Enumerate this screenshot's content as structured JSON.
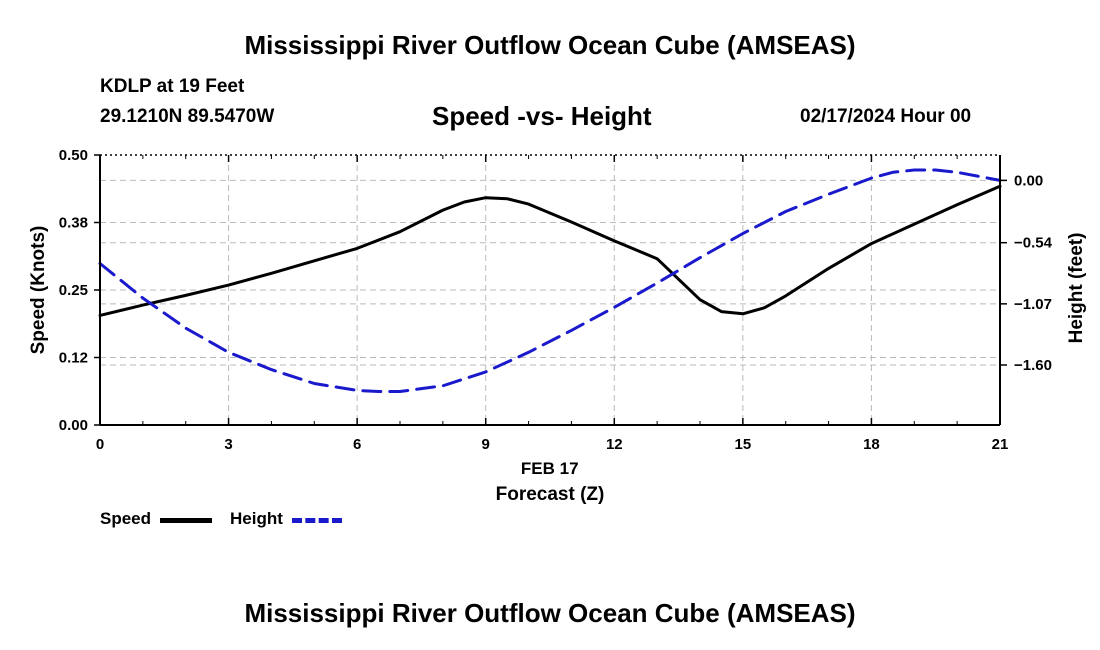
{
  "header": {
    "title": "Mississippi River Outflow Ocean Cube (AMSEAS)",
    "station": "KDLP at 19 Feet",
    "coords": "29.1210N  89.5470W",
    "subtitle": "Speed -vs- Height",
    "datetime": "02/17/2024 Hour 00"
  },
  "footer": {
    "title": "Mississippi River Outflow Ocean Cube (AMSEAS)"
  },
  "legend": {
    "items": [
      {
        "label": "Speed",
        "color": "#000000",
        "style": "solid"
      },
      {
        "label": "Height",
        "color": "#1a1acc",
        "style": "dashed"
      }
    ]
  },
  "chart_data": {
    "type": "line",
    "xlabel": "Forecast (Z)",
    "xdate_label": "FEB 17",
    "ylabel_left": "Speed (Knots)",
    "ylabel_right": "Height (feet)",
    "xlim": [
      0,
      21
    ],
    "ylim_left": [
      0,
      0.5
    ],
    "ylim_right": [
      -2.12,
      0.22
    ],
    "x_ticks": [
      0,
      3,
      6,
      9,
      12,
      15,
      18,
      21
    ],
    "x_tick_labels": [
      "0",
      "3",
      "6",
      "9",
      "12",
      "15",
      "18",
      "21"
    ],
    "y_left_ticks": [
      0,
      0.125,
      0.25,
      0.375,
      0.5
    ],
    "y_left_tick_labels": [
      "0.00",
      "0.12",
      "0.25",
      "0.38",
      "0.50"
    ],
    "y_right_ticks": [
      0,
      -0.54,
      -1.07,
      -1.6
    ],
    "y_right_tick_labels": [
      "0.00",
      "−0.54",
      "−1.07",
      "−1.60"
    ],
    "grid": true,
    "series": [
      {
        "name": "Speed",
        "axis": "left",
        "color": "#000000",
        "style": "solid",
        "x": [
          0,
          1,
          2,
          3,
          4,
          5,
          6,
          7,
          8,
          8.5,
          9,
          9.5,
          10,
          11,
          12,
          13,
          14,
          14.5,
          15,
          15.5,
          16,
          17,
          18,
          19,
          20,
          21
        ],
        "values": [
          0.203,
          0.222,
          0.24,
          0.259,
          0.281,
          0.304,
          0.327,
          0.358,
          0.398,
          0.413,
          0.421,
          0.419,
          0.409,
          0.376,
          0.341,
          0.308,
          0.232,
          0.21,
          0.206,
          0.217,
          0.239,
          0.29,
          0.336,
          0.372,
          0.408,
          0.442
        ]
      },
      {
        "name": "Height",
        "axis": "right",
        "color": "#1a1acc",
        "style": "dashed",
        "x": [
          0,
          1,
          2,
          3,
          4,
          5,
          6,
          6.5,
          7,
          8,
          9,
          10,
          11,
          12,
          13,
          14,
          15,
          16,
          17,
          18,
          18.5,
          19,
          19.5,
          20,
          21
        ],
        "values": [
          -0.72,
          -1.02,
          -1.28,
          -1.49,
          -1.64,
          -1.76,
          -1.82,
          -1.83,
          -1.83,
          -1.78,
          -1.66,
          -1.49,
          -1.3,
          -1.1,
          -0.89,
          -0.67,
          -0.46,
          -0.27,
          -0.12,
          0.02,
          0.07,
          0.09,
          0.09,
          0.07,
          0.0
        ]
      }
    ]
  }
}
